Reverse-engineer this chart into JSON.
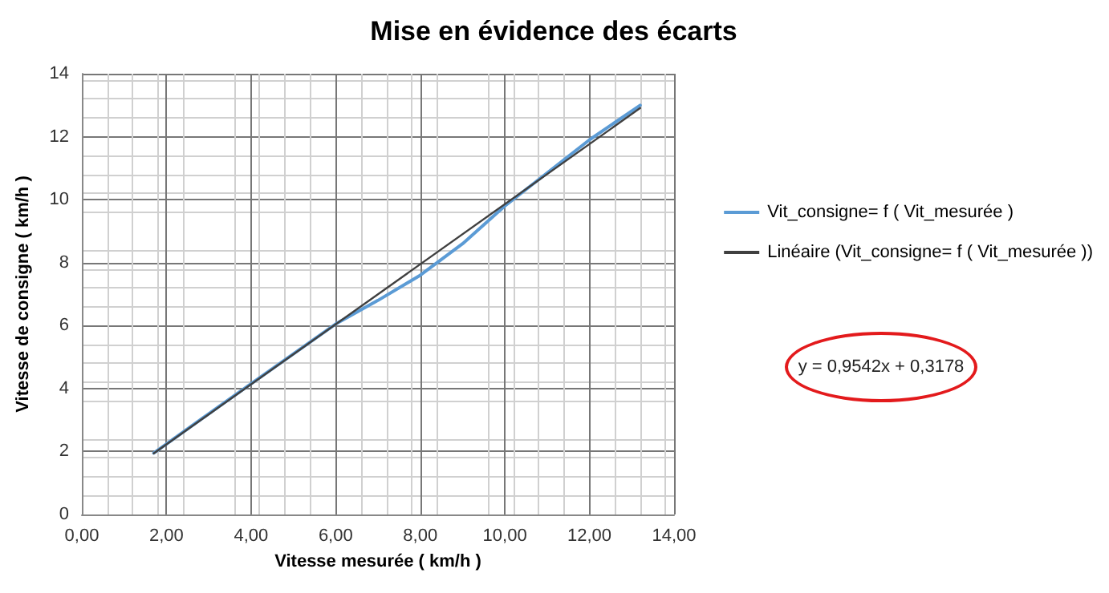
{
  "chart_data": {
    "type": "line",
    "title": "Mise en évidence des écarts",
    "xlabel": "Vitesse mesurée ( km/h )",
    "ylabel": "Vitesse de consigne ( km/h )",
    "xlim": [
      0,
      14
    ],
    "xticks": [
      {
        "value": 0,
        "label": "0,00"
      },
      {
        "value": 2,
        "label": "2,00"
      },
      {
        "value": 4,
        "label": "4,00"
      },
      {
        "value": 6,
        "label": "6,00"
      },
      {
        "value": 8,
        "label": "8,00"
      },
      {
        "value": 10,
        "label": "10,00"
      },
      {
        "value": 12,
        "label": "12,00"
      },
      {
        "value": 14,
        "label": "14,00"
      }
    ],
    "ylim": [
      0,
      14
    ],
    "yticks": [
      0,
      2,
      4,
      6,
      8,
      10,
      12,
      14
    ],
    "grid": true,
    "legend": "right",
    "marker": "none",
    "line_style": "solid",
    "annotations": [
      "y = 0,9542x + 0,3178"
    ],
    "series": [
      {
        "name": "Vit_consigne= f ( Vit_mesurée )",
        "color": "#5b9bd5",
        "x": [
          1.7,
          3,
          4,
          5,
          6,
          7,
          8,
          9,
          10,
          11,
          12,
          13.2
        ],
        "values": [
          1.95,
          3.2,
          4.15,
          5.1,
          6.05,
          6.8,
          7.6,
          8.6,
          9.8,
          10.85,
          11.9,
          13.0
        ]
      },
      {
        "name": "Linéaire (Vit_consigne= f ( Vit_mesurée ))",
        "color": "#404040",
        "x": [
          1.7,
          13.2
        ],
        "values": [
          1.94,
          12.91
        ]
      }
    ]
  }
}
